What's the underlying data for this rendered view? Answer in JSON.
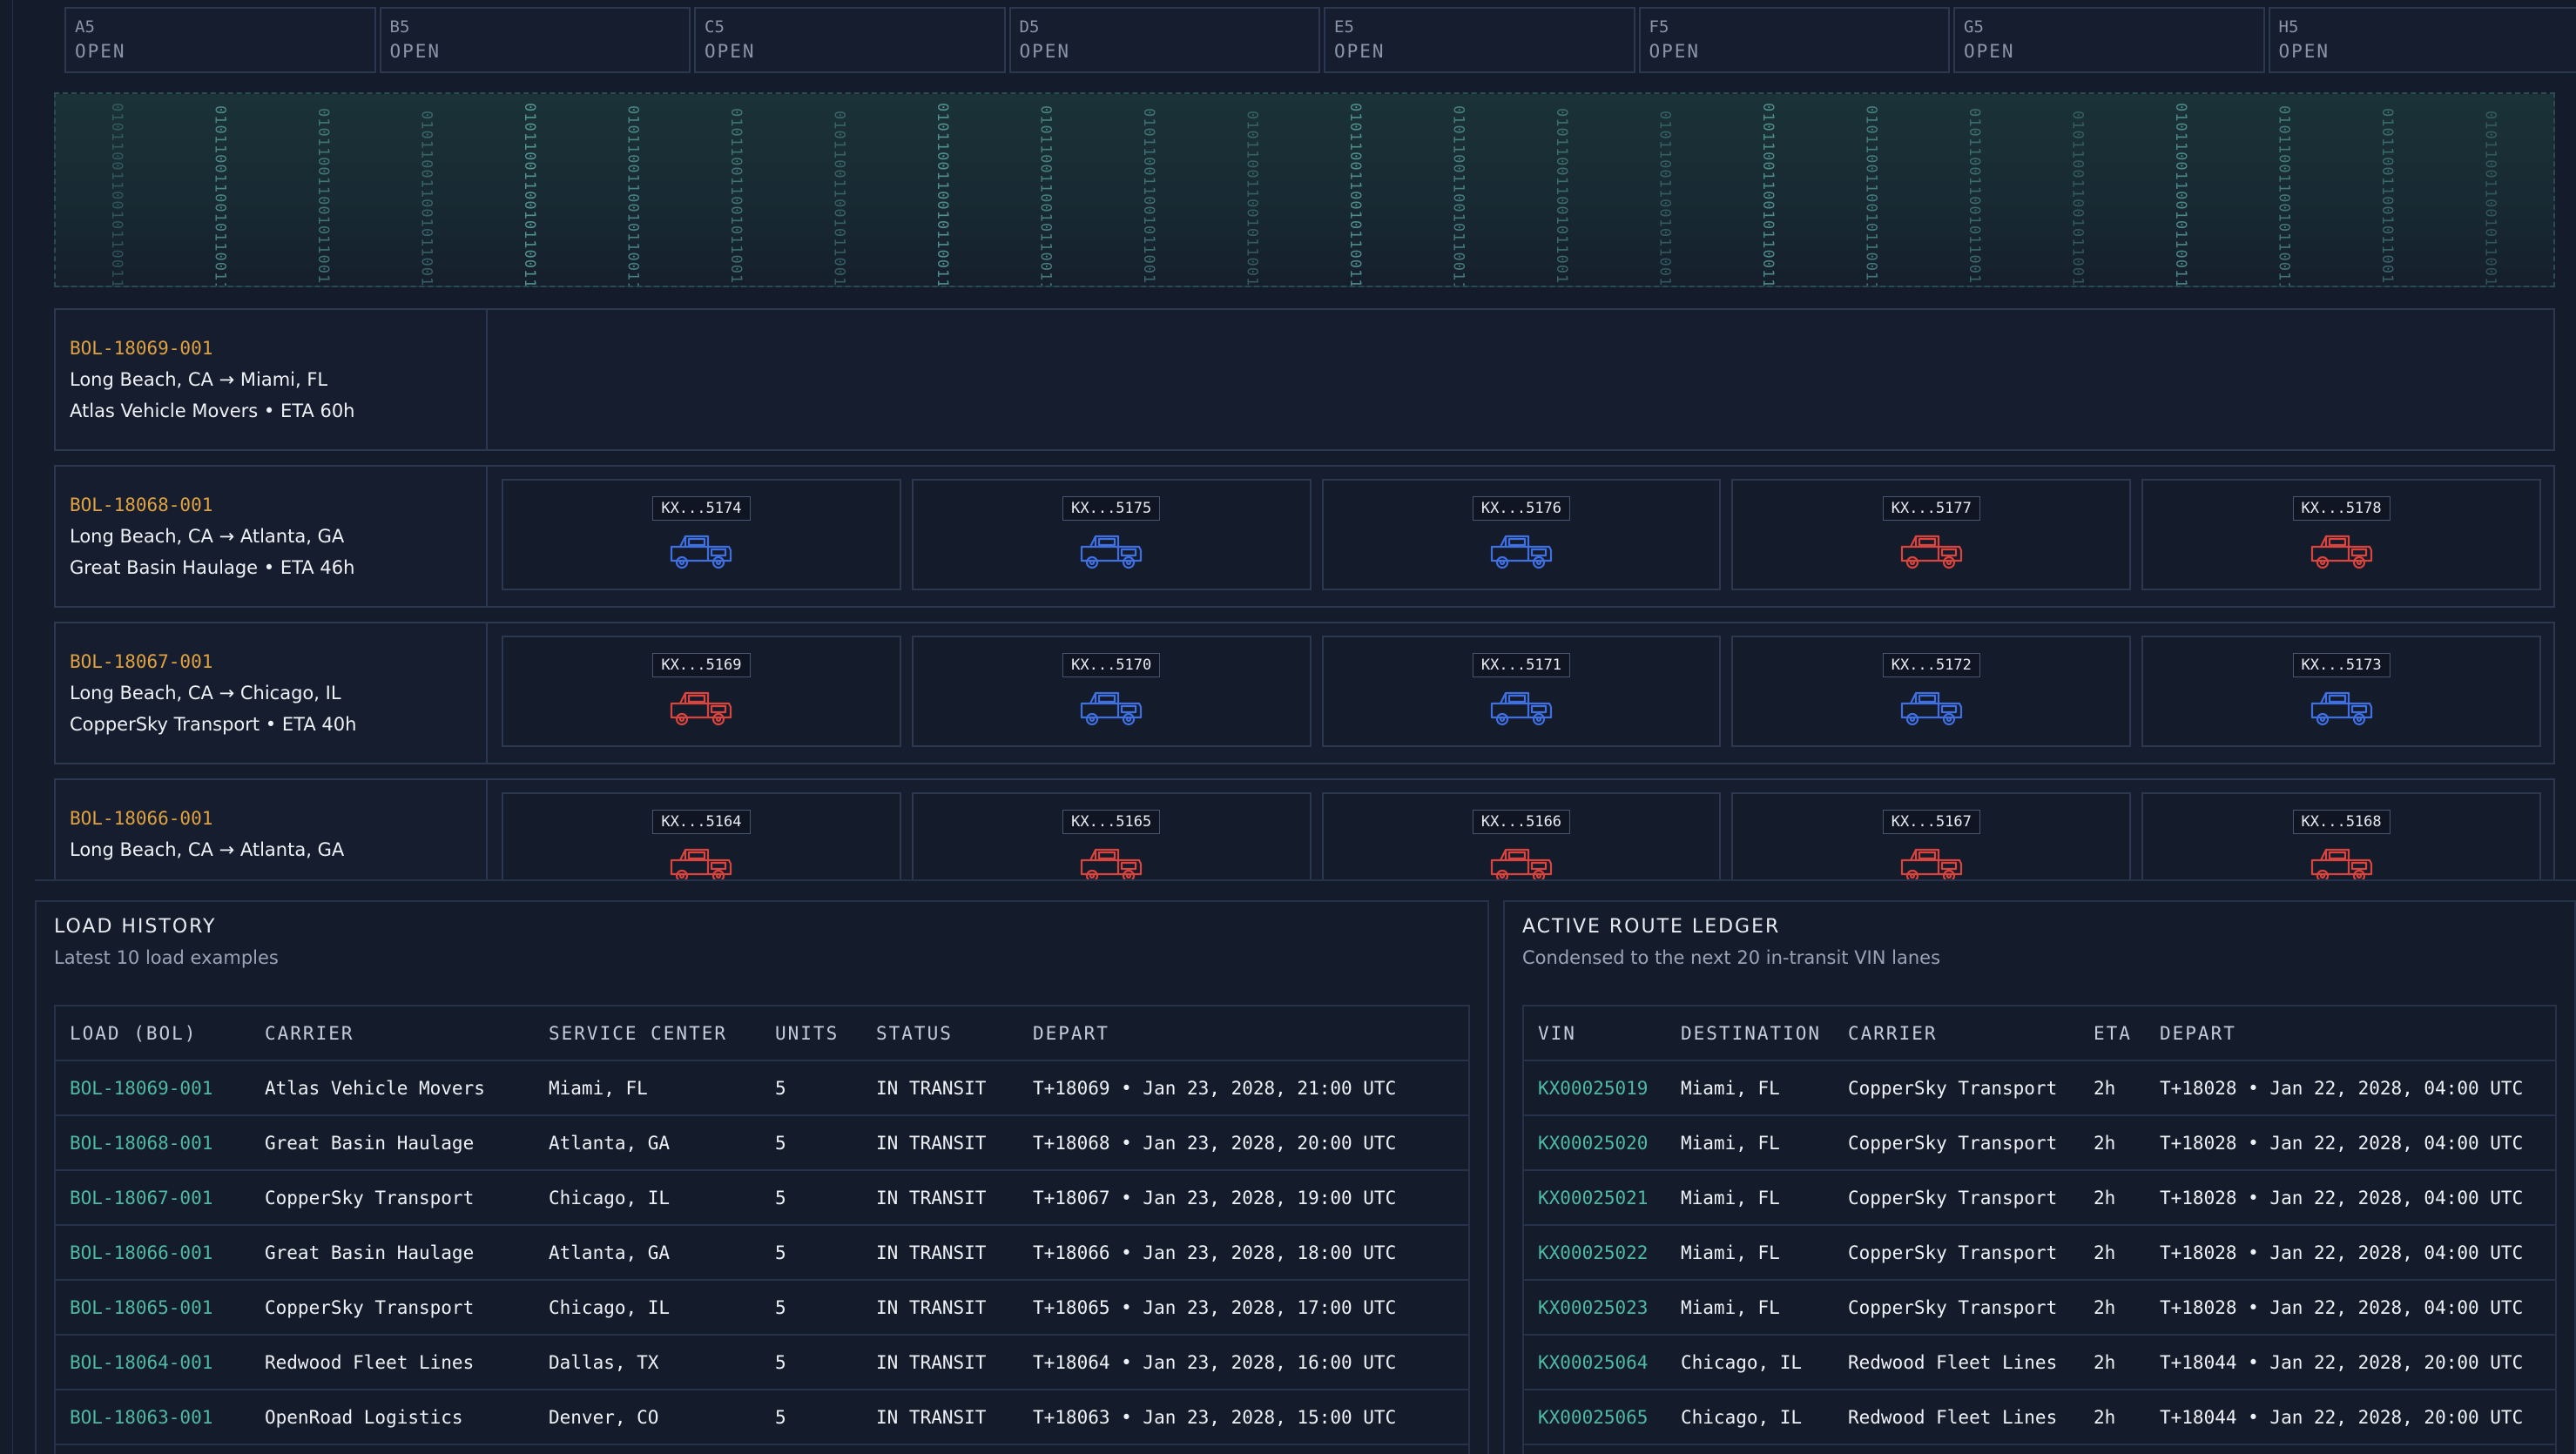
{
  "slots": [
    {
      "id": "A5",
      "status": "OPEN"
    },
    {
      "id": "B5",
      "status": "OPEN"
    },
    {
      "id": "C5",
      "status": "OPEN"
    },
    {
      "id": "D5",
      "status": "OPEN"
    },
    {
      "id": "E5",
      "status": "OPEN"
    },
    {
      "id": "F5",
      "status": "OPEN"
    },
    {
      "id": "G5",
      "status": "OPEN"
    },
    {
      "id": "H5",
      "status": "OPEN"
    }
  ],
  "binary_stream": "010110011001011001100101100",
  "loads": [
    {
      "bol": "BOL-18069-001",
      "route": "Long Beach, CA → Miami, FL",
      "carrier_eta": "Atlas Vehicle Movers • ETA 60h",
      "vehicles": []
    },
    {
      "bol": "BOL-18068-001",
      "route": "Long Beach, CA → Atlanta, GA",
      "carrier_eta": "Great Basin Haulage • ETA 46h",
      "vehicles": [
        {
          "vin": "KX...5174",
          "color": "#3f6fe0"
        },
        {
          "vin": "KX...5175",
          "color": "#3f6fe0"
        },
        {
          "vin": "KX...5176",
          "color": "#3f6fe0"
        },
        {
          "vin": "KX...5177",
          "color": "#d9443e"
        },
        {
          "vin": "KX...5178",
          "color": "#d9443e"
        }
      ]
    },
    {
      "bol": "BOL-18067-001",
      "route": "Long Beach, CA → Chicago, IL",
      "carrier_eta": "CopperSky Transport • ETA 40h",
      "vehicles": [
        {
          "vin": "KX...5169",
          "color": "#d9443e"
        },
        {
          "vin": "KX...5170",
          "color": "#3f6fe0"
        },
        {
          "vin": "KX...5171",
          "color": "#3f6fe0"
        },
        {
          "vin": "KX...5172",
          "color": "#3f6fe0"
        },
        {
          "vin": "KX...5173",
          "color": "#3f6fe0"
        }
      ]
    },
    {
      "bol": "BOL-18066-001",
      "route": "Long Beach, CA → Atlanta, GA",
      "carrier_eta": "",
      "vehicles": [
        {
          "vin": "KX...5164",
          "color": "#d9443e"
        },
        {
          "vin": "KX...5165",
          "color": "#d9443e"
        },
        {
          "vin": "KX...5166",
          "color": "#d9443e"
        },
        {
          "vin": "KX...5167",
          "color": "#d9443e"
        },
        {
          "vin": "KX...5168",
          "color": "#d9443e"
        }
      ]
    }
  ],
  "load_history": {
    "title": "LOAD HISTORY",
    "subtitle": "Latest 10 load examples",
    "columns": [
      "LOAD (BOL)",
      "CARRIER",
      "SERVICE CENTER",
      "UNITS",
      "STATUS",
      "DEPART"
    ],
    "rows": [
      [
        "BOL-18069-001",
        "Atlas Vehicle Movers",
        "Miami, FL",
        "5",
        "IN TRANSIT",
        "T+18069 • Jan 23, 2028, 21:00 UTC"
      ],
      [
        "BOL-18068-001",
        "Great Basin Haulage",
        "Atlanta, GA",
        "5",
        "IN TRANSIT",
        "T+18068 • Jan 23, 2028, 20:00 UTC"
      ],
      [
        "BOL-18067-001",
        "CopperSky Transport",
        "Chicago, IL",
        "5",
        "IN TRANSIT",
        "T+18067 • Jan 23, 2028, 19:00 UTC"
      ],
      [
        "BOL-18066-001",
        "Great Basin Haulage",
        "Atlanta, GA",
        "5",
        "IN TRANSIT",
        "T+18066 • Jan 23, 2028, 18:00 UTC"
      ],
      [
        "BOL-18065-001",
        "CopperSky Transport",
        "Chicago, IL",
        "5",
        "IN TRANSIT",
        "T+18065 • Jan 23, 2028, 17:00 UTC"
      ],
      [
        "BOL-18064-001",
        "Redwood Fleet Lines",
        "Dallas, TX",
        "5",
        "IN TRANSIT",
        "T+18064 • Jan 23, 2028, 16:00 UTC"
      ],
      [
        "BOL-18063-001",
        "OpenRoad Logistics",
        "Denver, CO",
        "5",
        "IN TRANSIT",
        "T+18063 • Jan 23, 2028, 15:00 UTC"
      ]
    ]
  },
  "route_ledger": {
    "title": "ACTIVE ROUTE LEDGER",
    "subtitle": "Condensed to the next 20 in-transit VIN lanes",
    "columns": [
      "VIN",
      "DESTINATION",
      "CARRIER",
      "ETA",
      "DEPART"
    ],
    "rows": [
      [
        "KX00025019",
        "Miami, FL",
        "CopperSky Transport",
        "2h",
        "T+18028 • Jan 22, 2028, 04:00 UTC"
      ],
      [
        "KX00025020",
        "Miami, FL",
        "CopperSky Transport",
        "2h",
        "T+18028 • Jan 22, 2028, 04:00 UTC"
      ],
      [
        "KX00025021",
        "Miami, FL",
        "CopperSky Transport",
        "2h",
        "T+18028 • Jan 22, 2028, 04:00 UTC"
      ],
      [
        "KX00025022",
        "Miami, FL",
        "CopperSky Transport",
        "2h",
        "T+18028 • Jan 22, 2028, 04:00 UTC"
      ],
      [
        "KX00025023",
        "Miami, FL",
        "CopperSky Transport",
        "2h",
        "T+18028 • Jan 22, 2028, 04:00 UTC"
      ],
      [
        "KX00025064",
        "Chicago, IL",
        "Redwood Fleet Lines",
        "2h",
        "T+18044 • Jan 22, 2028, 20:00 UTC"
      ],
      [
        "KX00025065",
        "Chicago, IL",
        "Redwood Fleet Lines",
        "2h",
        "T+18044 • Jan 22, 2028, 20:00 UTC"
      ]
    ]
  }
}
